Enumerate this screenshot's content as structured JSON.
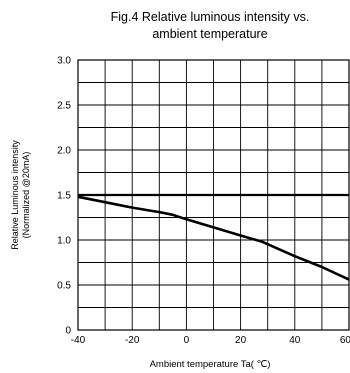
{
  "chart_data": {
    "type": "line",
    "title": "Fig.4 Relative luminous intensity vs.",
    "subtitle": "ambient temperature",
    "xlabel": "Ambient temperature Ta( ℃)",
    "ylabel": "Relative Luminous intensity",
    "ylabel_sub": "(Normalized @20mA)",
    "xlim": [
      -40,
      60
    ],
    "ylim": [
      0,
      3.0
    ],
    "grid": true,
    "x_ticks": [
      "-40",
      "-20",
      "0",
      "20",
      "40",
      "60"
    ],
    "y_ticks": [
      "0",
      "0.5",
      "1.0",
      "1.5",
      "2.0",
      "2.5",
      "3.0"
    ],
    "reference_line": {
      "y": 1.5
    },
    "series": [
      {
        "x": [
          -40,
          -30,
          -20,
          -10,
          -5,
          0,
          10,
          20,
          28,
          40,
          50,
          60
        ],
        "y": [
          1.48,
          1.42,
          1.36,
          1.31,
          1.28,
          1.23,
          1.14,
          1.05,
          0.98,
          0.82,
          0.7,
          0.56
        ]
      }
    ],
    "colors": {
      "line": "#000000",
      "grid": "#000000"
    }
  }
}
